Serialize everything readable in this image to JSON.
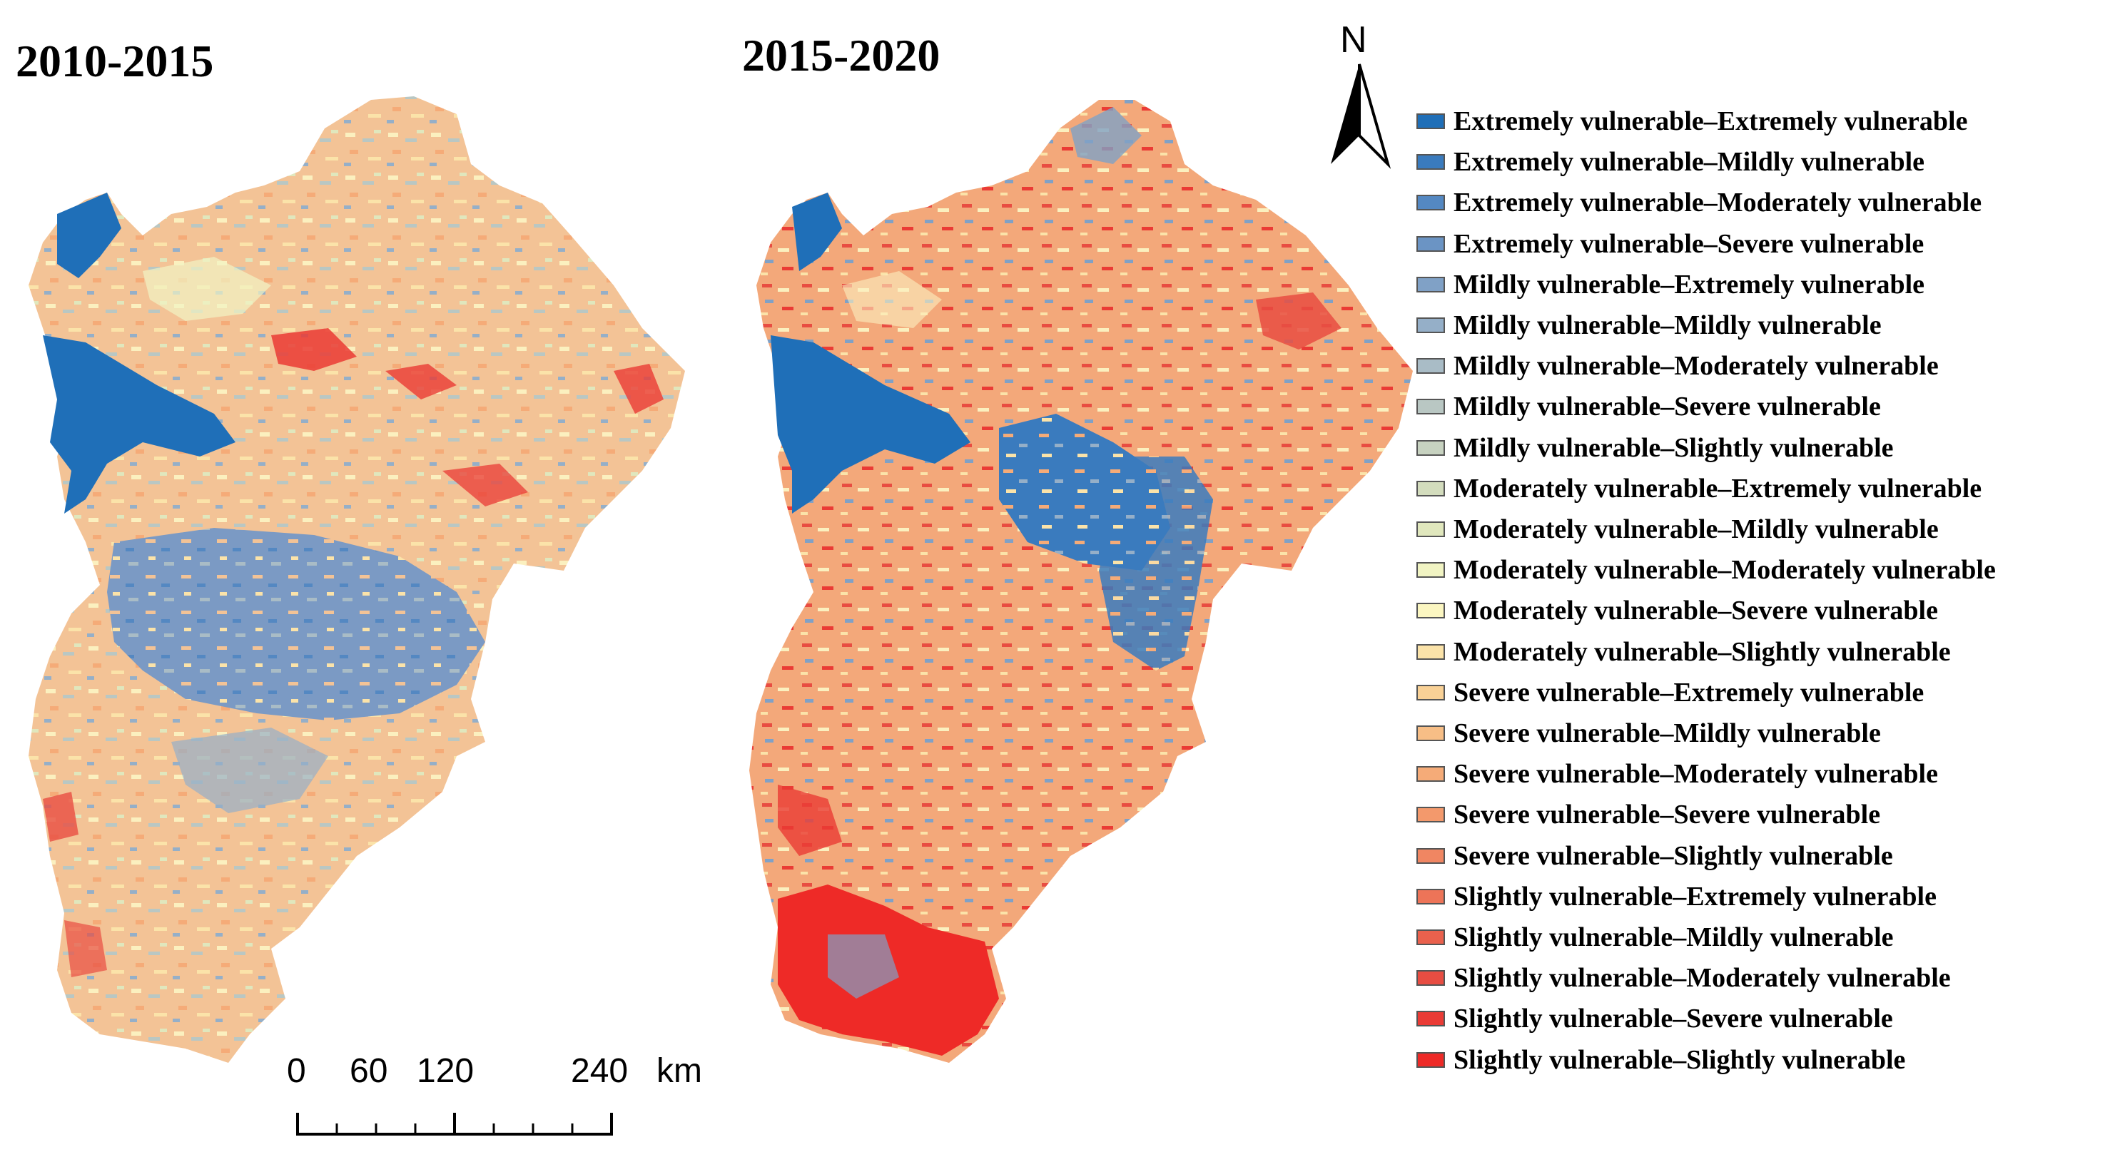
{
  "panels": [
    {
      "title": "2010-2015"
    },
    {
      "title": "2015-2020"
    }
  ],
  "north_arrow": {
    "label": "N"
  },
  "legend": {
    "items": [
      {
        "label": "Extremely vulnerable–Extremely vulnerable",
        "color": "#1f6fb8"
      },
      {
        "label": "Extremely vulnerable–Mildly vulnerable",
        "color": "#3a7bbe"
      },
      {
        "label": "Extremely vulnerable–Moderately vulnerable",
        "color": "#5488c2"
      },
      {
        "label": "Extremely vulnerable–Severe vulnerable",
        "color": "#6b94c4"
      },
      {
        "label": "Mildly vulnerable–Extremely vulnerable",
        "color": "#80a1c6"
      },
      {
        "label": "Mildly vulnerable–Mildly vulnerable",
        "color": "#95afc8"
      },
      {
        "label": "Mildly vulnerable–Moderately vulnerable",
        "color": "#a9bcc6"
      },
      {
        "label": "Mildly vulnerable–Severe vulnerable",
        "color": "#b9c7c3"
      },
      {
        "label": "Mildly vulnerable–Slightly vulnerable",
        "color": "#c7d2c0"
      },
      {
        "label": "Moderately vulnerable–Extremely vulnerable",
        "color": "#d3dcbd"
      },
      {
        "label": "Moderately vulnerable–Mildly vulnerable",
        "color": "#e0e7bd"
      },
      {
        "label": "Moderately vulnerable–Moderately vulnerable",
        "color": "#f1f4c3"
      },
      {
        "label": "Moderately vulnerable–Severe vulnerable",
        "color": "#fbf6c1"
      },
      {
        "label": "Moderately vulnerable–Slightly vulnerable",
        "color": "#fbe3a9"
      },
      {
        "label": "Severe vulnerable–Extremely vulnerable",
        "color": "#f9d196"
      },
      {
        "label": "Severe vulnerable–Mildly vulnerable",
        "color": "#f7be86"
      },
      {
        "label": "Severe vulnerable–Moderately vulnerable",
        "color": "#f5ab78"
      },
      {
        "label": "Severe vulnerable–Severe vulnerable",
        "color": "#f3996c"
      },
      {
        "label": "Severe vulnerable–Slightly vulnerable",
        "color": "#f08662"
      },
      {
        "label": "Slightly vulnerable–Extremely vulnerable",
        "color": "#ed7458"
      },
      {
        "label": "Slightly vulnerable–Mildly vulnerable",
        "color": "#ea614d"
      },
      {
        "label": "Slightly vulnerable–Moderately vulnerable",
        "color": "#e84d42"
      },
      {
        "label": "Slightly vulnerable–Severe vulnerable",
        "color": "#ea3b35"
      },
      {
        "label": "Slightly vulnerable–Slightly vulnerable",
        "color": "#ee2a27"
      }
    ]
  },
  "scale_bar": {
    "ticks": [
      "0",
      "60",
      "120",
      "240"
    ],
    "unit": "km"
  }
}
